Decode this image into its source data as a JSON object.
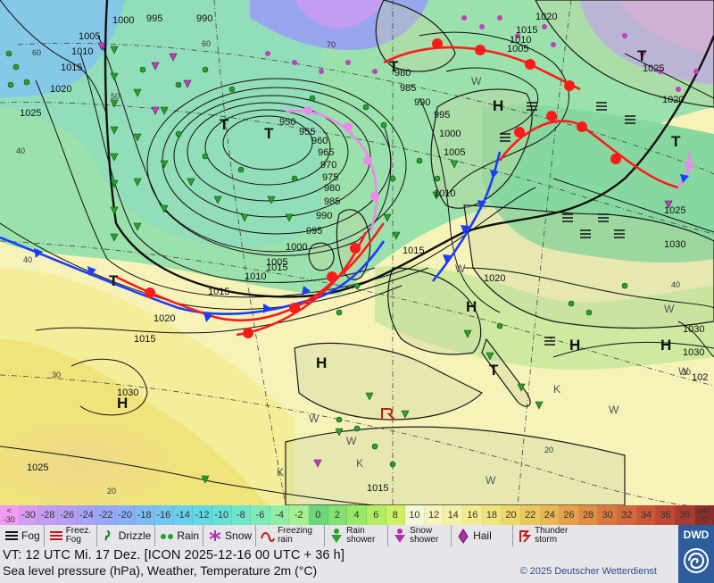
{
  "map": {
    "isobar_labels": [
      "1000",
      "995",
      "990",
      "1005",
      "1010",
      "1015",
      "1020",
      "1025",
      "1015",
      "1020",
      "1015",
      "1010",
      "1005",
      "1015",
      "1020",
      "950",
      "955",
      "960",
      "965",
      "970",
      "975",
      "980",
      "985",
      "990",
      "995",
      "1000",
      "1005",
      "1010",
      "1015",
      "1020",
      "1025",
      "1030",
      "980",
      "985",
      "990",
      "995",
      "1000",
      "1005",
      "1010",
      "1015",
      "1020",
      "1025",
      "1030",
      "1025",
      "1030",
      "1015",
      "1030",
      "102"
    ],
    "pressure_centers": [
      "T",
      "T",
      "T",
      "T",
      "T",
      "T",
      "T",
      "H",
      "H",
      "H",
      "H",
      "H",
      "H"
    ],
    "latitude_labels": [
      "60",
      "50",
      "40",
      "30",
      "20",
      "70",
      "60",
      "40",
      "40",
      "30",
      "20"
    ],
    "weather_letters": [
      "W",
      "W",
      "W",
      "W",
      "W",
      "W",
      "W",
      "W",
      "K",
      "K",
      "K"
    ]
  },
  "scale": {
    "values": [
      "< -30",
      "-30",
      "-28",
      "-26",
      "-24",
      "-22",
      "-20",
      "-18",
      "-16",
      "-14",
      "-12",
      "-10",
      "-8",
      "-6",
      "-4",
      "-2",
      "0",
      "2",
      "4",
      "6",
      "8",
      "10",
      "12",
      "14",
      "16",
      "18",
      "20",
      "22",
      "24",
      "26",
      "28",
      "30",
      "32",
      "34",
      "36",
      "38",
      "≥40 °C"
    ],
    "colors": [
      "#f09cf0",
      "#d49cf0",
      "#c49cf0",
      "#b7a0f2",
      "#a7a4f4",
      "#97a8f6",
      "#8bb0f6",
      "#7fbcf4",
      "#74c6f0",
      "#6ad0ec",
      "#64d8e4",
      "#66e0d8",
      "#70e6c8",
      "#80eab6",
      "#92eea4",
      "#a6f092",
      "#6cd67c",
      "#84e070",
      "#9ae868",
      "#b2ee64",
      "#ccf264",
      "#f6f6d8",
      "#f6f4b8",
      "#f4f0a4",
      "#f2ec90",
      "#f0e57c",
      "#eed86a",
      "#ebc85c",
      "#e8b652",
      "#e4a24a",
      "#e08e44",
      "#da7a40",
      "#d2683c",
      "#c85838",
      "#bc4a34",
      "#a83c30",
      "#8c302c"
    ]
  },
  "legend": [
    {
      "label": "Fog",
      "icon": "fog-icon"
    },
    {
      "label": "Freez. Fog",
      "icon": "freezing-fog-icon"
    },
    {
      "label": "Drizzle",
      "icon": "drizzle-icon"
    },
    {
      "label": "Rain",
      "icon": "rain-icon"
    },
    {
      "label": "Snow",
      "icon": "snow-icon"
    },
    {
      "label": "Freezing rain",
      "icon": "freezing-rain-icon"
    },
    {
      "label": "Rain shower",
      "icon": "rain-shower-icon"
    },
    {
      "label": "Snow shower",
      "icon": "snow-shower-icon"
    },
    {
      "label": "Hail",
      "icon": "hail-icon"
    },
    {
      "label": "Thunder storm",
      "icon": "thunderstorm-icon"
    }
  ],
  "info": {
    "valid_time": "VT: 12 UTC Mi.   17 Dez. [ICON 2025-12-16  00 UTC + 36 h]",
    "subtitle": "Sea level pressure (hPa), Weather, Temperature 2m (°C)",
    "copyright": "© 2025 Deutscher Wetterdienst",
    "logo_text": "DWD"
  },
  "colors": {
    "cold_front": "#1a3cff",
    "warm_front": "#ff1a1a",
    "occluded_front": "#ee88ee",
    "isobar": "#111111",
    "footer_bg": "#e6e6ea",
    "dwd_blue": "#2c5d9c"
  }
}
